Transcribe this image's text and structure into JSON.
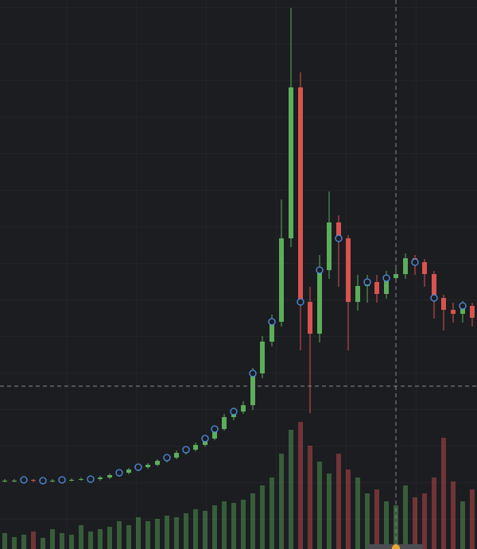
{
  "chart_data": {
    "type": "candlestick",
    "colors": {
      "up": "#5cae5a",
      "down": "#d9534f",
      "marker": "#4e8fe6"
    },
    "ylim": [
      0,
      691
    ],
    "y2lim": [
      0,
      691
    ],
    "open": [
      86,
      86,
      86,
      87,
      86,
      86,
      86,
      87,
      87,
      88,
      88,
      90,
      93,
      96,
      100,
      103,
      106,
      111,
      115,
      121,
      125,
      131,
      139,
      151,
      166,
      173,
      181,
      221,
      261,
      286,
      391,
      581,
      311,
      271,
      351,
      411,
      391,
      311,
      331,
      336,
      321,
      341,
      346,
      366,
      361,
      346,
      316,
      301,
      296,
      306
    ],
    "high": [
      88,
      88,
      89,
      88,
      88,
      88,
      89,
      89,
      90,
      90,
      92,
      95,
      98,
      102,
      105,
      108,
      113,
      117,
      124,
      128,
      134,
      142,
      155,
      170,
      178,
      186,
      228,
      268,
      295,
      440,
      681,
      600,
      330,
      370,
      450,
      420,
      395,
      345,
      345,
      345,
      350,
      355,
      372,
      370,
      365,
      350,
      320,
      310,
      312,
      310
    ],
    "low": [
      84,
      84,
      85,
      84,
      84,
      84,
      85,
      85,
      86,
      86,
      86,
      88,
      91,
      94,
      98,
      101,
      104,
      109,
      113,
      119,
      123,
      129,
      137,
      149,
      162,
      170,
      175,
      215,
      255,
      280,
      380,
      250,
      171,
      260,
      340,
      330,
      250,
      300,
      310,
      310,
      315,
      335,
      340,
      345,
      330,
      290,
      275,
      285,
      285,
      280
    ],
    "close": [
      86,
      86,
      87,
      86,
      86,
      86,
      87,
      87,
      88,
      88,
      90,
      93,
      96,
      100,
      103,
      106,
      111,
      115,
      121,
      125,
      131,
      139,
      151,
      166,
      173,
      181,
      221,
      261,
      286,
      391,
      581,
      311,
      271,
      351,
      411,
      391,
      311,
      331,
      336,
      321,
      341,
      346,
      366,
      361,
      346,
      316,
      301,
      296,
      306,
      291
    ],
    "volume": [
      20,
      15,
      18,
      22,
      14,
      25,
      20,
      18,
      30,
      22,
      25,
      28,
      35,
      30,
      40,
      35,
      38,
      42,
      40,
      45,
      50,
      48,
      55,
      60,
      58,
      62,
      70,
      80,
      90,
      120,
      150,
      160,
      130,
      110,
      95,
      120,
      100,
      90,
      70,
      75,
      60,
      55,
      80,
      65,
      70,
      90,
      140,
      85,
      60,
      75
    ],
    "markers": [
      2,
      4,
      6,
      9,
      12,
      14,
      17,
      19,
      21,
      22,
      24,
      26,
      28,
      31,
      33,
      35,
      38,
      40,
      43,
      45,
      48
    ]
  }
}
